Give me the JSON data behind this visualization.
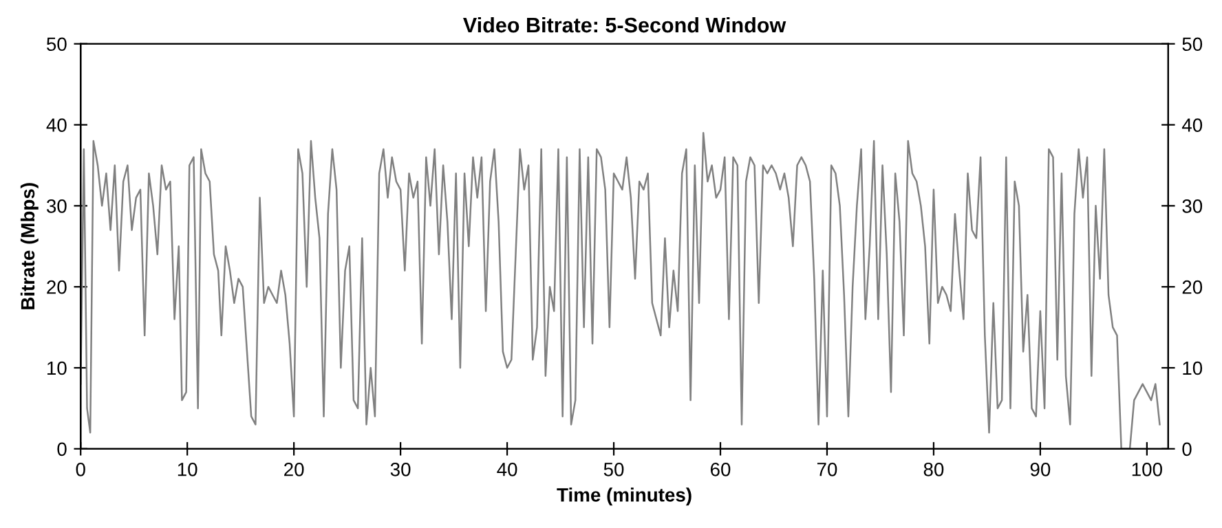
{
  "chart_data": {
    "type": "line",
    "title": "Video Bitrate: 5-Second Window",
    "xlabel": "Time (minutes)",
    "ylabel": "Bitrate (Mbps)",
    "xlim": [
      0,
      102
    ],
    "xticks": [
      0,
      10,
      20,
      30,
      40,
      50,
      60,
      70,
      80,
      90,
      100
    ],
    "ylim": [
      0,
      50
    ],
    "yticks": [
      0,
      10,
      20,
      30,
      40,
      50
    ],
    "y2lim": [
      0,
      50
    ],
    "y2ticks": [
      0,
      10,
      20,
      30,
      40,
      50
    ],
    "grid": false,
    "legend": false,
    "marker": "none",
    "line_style": "solid",
    "series": [
      {
        "color": "#808080",
        "x": [
          0,
          0.3,
          0.6,
          0.9,
          1.2,
          1.6,
          2.0,
          2.4,
          2.8,
          3.2,
          3.6,
          4.0,
          4.4,
          4.8,
          5.2,
          5.6,
          6.0,
          6.4,
          6.8,
          7.2,
          7.6,
          8.0,
          8.4,
          8.8,
          9.2,
          9.5,
          9.9,
          10.2,
          10.6,
          11.0,
          11.3,
          11.7,
          12.1,
          12.5,
          12.9,
          13.2,
          13.6,
          14.0,
          14.4,
          14.8,
          15.2,
          15.6,
          16.0,
          16.4,
          16.8,
          17.2,
          17.6,
          18.0,
          18.4,
          18.8,
          19.2,
          19.6,
          20.0,
          20.4,
          20.8,
          21.2,
          21.6,
          22.0,
          22.4,
          22.8,
          23.2,
          23.6,
          24.0,
          24.4,
          24.8,
          25.2,
          25.6,
          26.0,
          26.4,
          26.8,
          27.2,
          27.6,
          28.0,
          28.4,
          28.8,
          29.2,
          29.6,
          30.0,
          30.4,
          30.8,
          31.2,
          31.6,
          32.0,
          32.4,
          32.8,
          33.2,
          33.6,
          34.0,
          34.4,
          34.8,
          35.2,
          35.6,
          36.0,
          36.4,
          36.8,
          37.2,
          37.6,
          38.0,
          38.4,
          38.8,
          39.2,
          39.6,
          40.0,
          40.4,
          40.8,
          41.2,
          41.6,
          42.0,
          42.4,
          42.8,
          43.2,
          43.6,
          44.0,
          44.4,
          44.8,
          45.2,
          45.6,
          46.0,
          46.4,
          46.8,
          47.2,
          47.6,
          48.0,
          48.4,
          48.8,
          49.2,
          49.6,
          50.0,
          50.4,
          50.8,
          51.2,
          51.6,
          52.0,
          52.4,
          52.8,
          53.2,
          53.6,
          54.0,
          54.4,
          54.8,
          55.2,
          55.6,
          56.0,
          56.4,
          56.8,
          57.2,
          57.6,
          58.0,
          58.4,
          58.8,
          59.2,
          59.6,
          60.0,
          60.4,
          60.8,
          61.2,
          61.6,
          62.0,
          62.4,
          62.8,
          63.2,
          63.6,
          64.0,
          64.4,
          64.8,
          65.2,
          65.6,
          66.0,
          66.4,
          66.8,
          67.2,
          67.6,
          68.0,
          68.4,
          68.8,
          69.2,
          69.6,
          70.0,
          70.4,
          70.8,
          71.2,
          71.6,
          72.0,
          72.4,
          72.8,
          73.2,
          73.6,
          74.0,
          74.4,
          74.8,
          75.2,
          75.6,
          76.0,
          76.4,
          76.8,
          77.2,
          77.6,
          78.0,
          78.4,
          78.8,
          79.2,
          79.6,
          80.0,
          80.4,
          80.8,
          81.2,
          81.6,
          82.0,
          82.4,
          82.8,
          83.2,
          83.6,
          84.0,
          84.4,
          84.8,
          85.2,
          85.6,
          86.0,
          86.4,
          86.8,
          87.2,
          87.6,
          88.0,
          88.4,
          88.8,
          89.2,
          89.6,
          90.0,
          90.4,
          90.8,
          91.2,
          91.6,
          92.0,
          92.4,
          92.8,
          93.2,
          93.6,
          94.0,
          94.4,
          94.8,
          95.2,
          95.6,
          96.0,
          96.4,
          96.8,
          97.2,
          97.6,
          98.0,
          98.4,
          98.8,
          99.2,
          99.6,
          100.0,
          100.4,
          100.8,
          101.2
        ],
        "values": [
          8,
          37,
          5,
          2,
          38,
          35,
          30,
          34,
          27,
          35,
          22,
          33,
          35,
          27,
          31,
          32,
          14,
          34,
          30,
          24,
          35,
          32,
          33,
          16,
          25,
          6,
          7,
          35,
          36,
          5,
          37,
          34,
          33,
          24,
          22,
          14,
          25,
          22,
          18,
          21,
          20,
          12,
          4,
          3,
          31,
          18,
          20,
          19,
          18,
          22,
          19,
          13,
          4,
          37,
          34,
          20,
          38,
          31,
          26,
          4,
          29,
          37,
          32,
          10,
          22,
          25,
          6,
          5,
          26,
          3,
          10,
          4,
          34,
          37,
          31,
          36,
          33,
          32,
          22,
          34,
          31,
          33,
          13,
          36,
          30,
          37,
          24,
          35,
          28,
          16,
          34,
          10,
          34,
          25,
          36,
          31,
          36,
          17,
          33,
          37,
          28,
          12,
          10,
          11,
          24,
          37,
          32,
          35,
          11,
          15,
          37,
          9,
          20,
          17,
          37,
          4,
          36,
          3,
          6,
          37,
          15,
          36,
          13,
          37,
          36,
          32,
          15,
          34,
          33,
          32,
          36,
          31,
          21,
          33,
          32,
          34,
          18,
          16,
          14,
          26,
          15,
          22,
          17,
          34,
          37,
          6,
          35,
          18,
          39,
          33,
          35,
          31,
          32,
          36,
          16,
          36,
          35,
          3,
          33,
          36,
          35,
          18,
          35,
          34,
          35,
          34,
          32,
          34,
          31,
          25,
          35,
          36,
          35,
          33,
          21,
          3,
          22,
          4,
          35,
          34,
          30,
          19,
          4,
          20,
          30,
          37,
          16,
          25,
          38,
          16,
          35,
          24,
          7,
          34,
          28,
          14,
          38,
          34,
          33,
          30,
          25,
          13,
          32,
          18,
          20,
          19,
          17,
          29,
          22,
          16,
          34,
          27,
          26,
          36,
          14,
          2,
          18,
          5,
          6,
          36,
          5,
          33,
          30,
          12,
          19,
          5,
          4,
          17,
          5,
          37,
          36,
          11,
          34,
          9,
          3,
          29,
          37,
          31,
          36,
          9,
          30,
          21,
          37,
          19,
          15,
          14,
          0,
          0,
          0,
          6,
          7,
          8,
          7,
          6,
          8,
          3
        ]
      }
    ]
  }
}
